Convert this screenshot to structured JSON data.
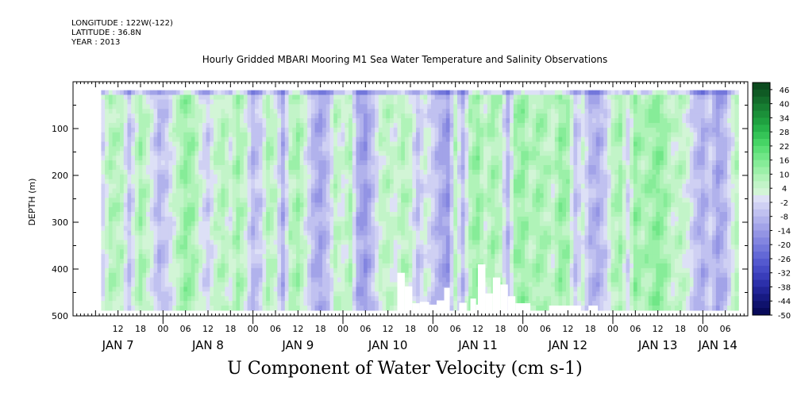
{
  "meta": {
    "longitude": "LONGITUDE : 122W(-122)",
    "latitude": "LATITUDE : 36.8N",
    "year": "YEAR : 2013"
  },
  "chart_data": {
    "type": "heatmap",
    "title": "Hourly Gridded MBARI Mooring M1 Sea Water Temperature and Salinity Observations",
    "xlabel": "U Component of Water Velocity (cm s-1)",
    "ylabel": "DEPTH (m)",
    "y_axis": {
      "range": [
        0,
        500
      ],
      "inverted": true,
      "ticks": [
        100,
        200,
        300,
        400,
        500
      ],
      "tick_labels": [
        "100",
        "200",
        "300",
        "400",
        "500"
      ]
    },
    "x_axis": {
      "range_hours": [
        0,
        180
      ],
      "hour_ticks": [
        {
          "h": 12,
          "label": "12"
        },
        {
          "h": 18,
          "label": "18"
        },
        {
          "h": 24,
          "label": "00"
        },
        {
          "h": 30,
          "label": "06"
        },
        {
          "h": 36,
          "label": "12"
        },
        {
          "h": 42,
          "label": "18"
        },
        {
          "h": 48,
          "label": "00"
        },
        {
          "h": 54,
          "label": "06"
        },
        {
          "h": 60,
          "label": "12"
        },
        {
          "h": 66,
          "label": "18"
        },
        {
          "h": 72,
          "label": "00"
        },
        {
          "h": 78,
          "label": "06"
        },
        {
          "h": 84,
          "label": "12"
        },
        {
          "h": 90,
          "label": "18"
        },
        {
          "h": 96,
          "label": "00"
        },
        {
          "h": 102,
          "label": "06"
        },
        {
          "h": 108,
          "label": "12"
        },
        {
          "h": 114,
          "label": "18"
        },
        {
          "h": 120,
          "label": "00"
        },
        {
          "h": 126,
          "label": "06"
        },
        {
          "h": 132,
          "label": "12"
        },
        {
          "h": 138,
          "label": "18"
        },
        {
          "h": 144,
          "label": "00"
        },
        {
          "h": 150,
          "label": "06"
        },
        {
          "h": 156,
          "label": "12"
        },
        {
          "h": 162,
          "label": "18"
        },
        {
          "h": 168,
          "label": "00"
        },
        {
          "h": 174,
          "label": "06"
        }
      ],
      "day_labels": [
        {
          "h": 12,
          "label": "JAN  7"
        },
        {
          "h": 36,
          "label": "JAN  8"
        },
        {
          "h": 60,
          "label": "JAN  9"
        },
        {
          "h": 84,
          "label": "JAN 10"
        },
        {
          "h": 108,
          "label": "JAN 11"
        },
        {
          "h": 132,
          "label": "JAN 12"
        },
        {
          "h": 156,
          "label": "JAN 13"
        },
        {
          "h": 172,
          "label": "JAN 14"
        }
      ]
    },
    "data_extent": {
      "hour_start": 7.5,
      "hour_end": 177.5,
      "depth_top": 18,
      "depth_bottom": 488
    },
    "colorbar": {
      "labels": [
        "46",
        "40",
        "34",
        "28",
        "22",
        "16",
        "10",
        "4",
        "-2",
        "-8",
        "-14",
        "-20",
        "-26",
        "-32",
        "-38",
        "-44",
        "-50"
      ],
      "levels": [
        49,
        46,
        43,
        40,
        37,
        34,
        31,
        28,
        25,
        22,
        19,
        16,
        13,
        10,
        7,
        4,
        1,
        -2,
        -5,
        -8,
        -11,
        -14,
        -17,
        -20,
        -23,
        -26,
        -29,
        -32,
        -35,
        -38,
        -41,
        -44,
        -47,
        -50
      ],
      "colors": [
        "#0b4a1e",
        "#0f5a24",
        "#136c2b",
        "#177e32",
        "#1b9039",
        "#1fa140",
        "#27b34a",
        "#35c457",
        "#46d465",
        "#5bdf76",
        "#70e687",
        "#86ec98",
        "#9bf0a8",
        "#b0f3b8",
        "#c2f4c8",
        "#d2f5d6",
        "#dde0f6",
        "#cfd0f3",
        "#c0c1f0",
        "#b1b2ec",
        "#a2a3e8",
        "#9394e4",
        "#8385e0",
        "#7377db",
        "#6368d6",
        "#5459cf",
        "#464bc6",
        "#393dba",
        "#2c30aa",
        "#212497",
        "#171a82",
        "#0f126d",
        "#080a5a"
      ]
    },
    "column_profile_cm_s": [
      {
        "h": 7.5,
        "v": -4
      },
      {
        "h": 10,
        "v": 8
      },
      {
        "h": 13,
        "v": 6
      },
      {
        "h": 15,
        "v": -6
      },
      {
        "h": 18,
        "v": 10
      },
      {
        "h": 20,
        "v": 4
      },
      {
        "h": 23,
        "v": -8
      },
      {
        "h": 25,
        "v": -4
      },
      {
        "h": 28,
        "v": 6
      },
      {
        "h": 30,
        "v": 12
      },
      {
        "h": 32,
        "v": 10
      },
      {
        "h": 34,
        "v": 2
      },
      {
        "h": 36,
        "v": -4
      },
      {
        "h": 38,
        "v": 4
      },
      {
        "h": 40,
        "v": 8
      },
      {
        "h": 42,
        "v": 2
      },
      {
        "h": 44,
        "v": 10
      },
      {
        "h": 46,
        "v": 4
      },
      {
        "h": 48,
        "v": -8
      },
      {
        "h": 50,
        "v": -4
      },
      {
        "h": 52,
        "v": 8
      },
      {
        "h": 54,
        "v": 4
      },
      {
        "h": 56,
        "v": -10
      },
      {
        "h": 58,
        "v": 6
      },
      {
        "h": 60,
        "v": 10
      },
      {
        "h": 62,
        "v": 2
      },
      {
        "h": 64,
        "v": -8
      },
      {
        "h": 66,
        "v": -12
      },
      {
        "h": 68,
        "v": -6
      },
      {
        "h": 70,
        "v": 6
      },
      {
        "h": 72,
        "v": 2
      },
      {
        "h": 74,
        "v": 8
      },
      {
        "h": 76,
        "v": -10
      },
      {
        "h": 78,
        "v": -14
      },
      {
        "h": 80,
        "v": -6
      },
      {
        "h": 82,
        "v": 4
      },
      {
        "h": 84,
        "v": 6
      },
      {
        "h": 86,
        "v": 2
      },
      {
        "h": 88,
        "v": 8
      },
      {
        "h": 90,
        "v": 4
      },
      {
        "h": 92,
        "v": -6
      },
      {
        "h": 94,
        "v": 2
      },
      {
        "h": 96,
        "v": -4
      },
      {
        "h": 98,
        "v": -10
      },
      {
        "h": 100,
        "v": -14
      },
      {
        "h": 102,
        "v": 6
      },
      {
        "h": 104,
        "v": -8
      },
      {
        "h": 106,
        "v": 8
      },
      {
        "h": 108,
        "v": 12
      },
      {
        "h": 110,
        "v": 4
      },
      {
        "h": 112,
        "v": 10
      },
      {
        "h": 114,
        "v": 6
      },
      {
        "h": 116,
        "v": -8
      },
      {
        "h": 118,
        "v": 10
      },
      {
        "h": 120,
        "v": 12
      },
      {
        "h": 122,
        "v": 6
      },
      {
        "h": 124,
        "v": 10
      },
      {
        "h": 126,
        "v": 8
      },
      {
        "h": 128,
        "v": 4
      },
      {
        "h": 130,
        "v": 12
      },
      {
        "h": 132,
        "v": 10
      },
      {
        "h": 134,
        "v": -6
      },
      {
        "h": 136,
        "v": 2
      },
      {
        "h": 138,
        "v": -8
      },
      {
        "h": 140,
        "v": -10
      },
      {
        "h": 142,
        "v": -4
      },
      {
        "h": 144,
        "v": 6
      },
      {
        "h": 146,
        "v": 10
      },
      {
        "h": 148,
        "v": -2
      },
      {
        "h": 150,
        "v": 12
      },
      {
        "h": 152,
        "v": 8
      },
      {
        "h": 154,
        "v": 10
      },
      {
        "h": 156,
        "v": 14
      },
      {
        "h": 158,
        "v": 10
      },
      {
        "h": 160,
        "v": 4
      },
      {
        "h": 162,
        "v": 6
      },
      {
        "h": 164,
        "v": 2
      },
      {
        "h": 166,
        "v": -6
      },
      {
        "h": 168,
        "v": -10
      },
      {
        "h": 170,
        "v": -4
      },
      {
        "h": 172,
        "v": -12
      },
      {
        "h": 174,
        "v": -8
      },
      {
        "h": 176,
        "v": 2
      },
      {
        "h": 177.5,
        "v": 8
      }
    ],
    "near_surface_depth": 30,
    "near_surface_offset_cm_s": -10,
    "missing_data_blocks": [
      {
        "h0": 86.5,
        "h1": 88.5,
        "depth_top": 408
      },
      {
        "h0": 88.5,
        "h1": 90.5,
        "depth_top": 437
      },
      {
        "h0": 90.5,
        "h1": 92.5,
        "depth_top": 473
      },
      {
        "h0": 92.5,
        "h1": 95,
        "depth_top": 470
      },
      {
        "h0": 95,
        "h1": 97,
        "depth_top": 476
      },
      {
        "h0": 97,
        "h1": 99,
        "depth_top": 467
      },
      {
        "h0": 99,
        "h1": 100.5,
        "depth_top": 440
      },
      {
        "h0": 103,
        "h1": 105,
        "depth_top": 472
      },
      {
        "h0": 106,
        "h1": 107.5,
        "depth_top": 463
      },
      {
        "h0": 107.5,
        "h1": 108,
        "depth_top": 476
      },
      {
        "h0": 108,
        "h1": 110,
        "depth_top": 390
      },
      {
        "h0": 110,
        "h1": 112,
        "depth_top": 452
      },
      {
        "h0": 112,
        "h1": 114,
        "depth_top": 418
      },
      {
        "h0": 114,
        "h1": 116,
        "depth_top": 433
      },
      {
        "h0": 116,
        "h1": 118,
        "depth_top": 458
      },
      {
        "h0": 118,
        "h1": 122,
        "depth_top": 473
      },
      {
        "h0": 127,
        "h1": 135.5,
        "depth_top": 478
      },
      {
        "h0": 137.5,
        "h1": 140,
        "depth_top": 478
      }
    ]
  }
}
